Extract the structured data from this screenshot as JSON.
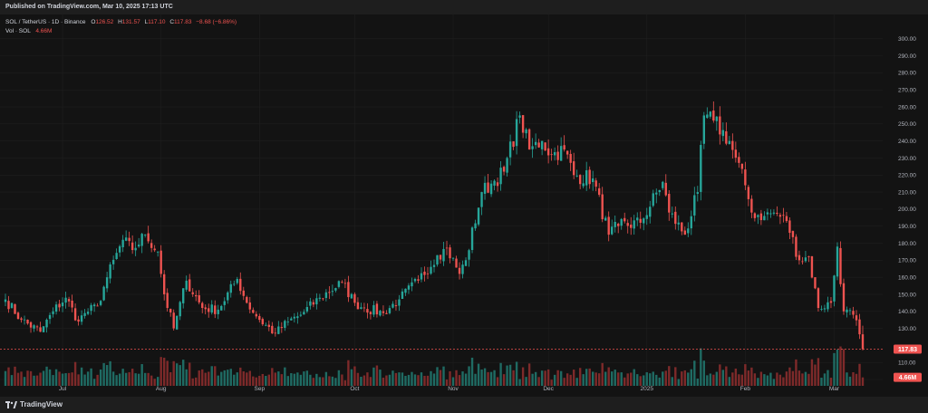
{
  "published": "Published on TradingView.com, Mar 10, 2025 17:13 UTC",
  "brand": "TradingView",
  "legend": {
    "symbol": "SOL / TetherUS · 1D · Binance",
    "o_label": "O",
    "o": "126.52",
    "h_label": "H",
    "h": "131.57",
    "l_label": "L",
    "l": "117.10",
    "c_label": "C",
    "c": "117.83",
    "change": "−8.68 (−6.86%)",
    "vol_label": "Vol · SOL",
    "vol": "4.66M"
  },
  "price_badge": "117.83",
  "vol_badge": "4.66M",
  "colors": {
    "up": "#26a69a",
    "down": "#ef5350",
    "up_vol": "#1f6b63",
    "down_vol": "#7e2a2a",
    "background": "#131313",
    "grid": "#1f1f1f",
    "axis_text": "#b2b5be"
  },
  "chart_data": {
    "type": "candlestick",
    "symbol": "SOL / TetherUS",
    "interval": "1D",
    "exchange": "Binance",
    "y_ticks": [
      "300.00",
      "290.00",
      "280.00",
      "270.00",
      "260.00",
      "250.00",
      "240.00",
      "230.00",
      "220.00",
      "210.00",
      "200.00",
      "190.00",
      "180.00",
      "170.00",
      "160.00",
      "150.00",
      "140.00",
      "130.00",
      "110.00",
      "100.00"
    ],
    "ylim": [
      100,
      310
    ],
    "x_ticks": [
      {
        "label": "Jul",
        "date": "2024-07-01"
      },
      {
        "label": "Aug",
        "date": "2024-08-01"
      },
      {
        "label": "Sep",
        "date": "2024-09-01"
      },
      {
        "label": "Oct",
        "date": "2024-10-01"
      },
      {
        "label": "Nov",
        "date": "2024-11-01"
      },
      {
        "label": "Dec",
        "date": "2024-12-01"
      },
      {
        "label": "2025",
        "date": "2025-01-01"
      },
      {
        "label": "Feb",
        "date": "2025-02-01"
      },
      {
        "label": "Mar",
        "date": "2025-03-01"
      }
    ],
    "start_date": "2024-06-13",
    "end_date": "2025-03-10",
    "close_anchors": [
      [
        "2024-06-13",
        147
      ],
      [
        "2024-06-18",
        135
      ],
      [
        "2024-06-24",
        128
      ],
      [
        "2024-06-28",
        140
      ],
      [
        "2024-07-02",
        148
      ],
      [
        "2024-07-06",
        134
      ],
      [
        "2024-07-08",
        139
      ],
      [
        "2024-07-12",
        143
      ],
      [
        "2024-07-15",
        160
      ],
      [
        "2024-07-20",
        182
      ],
      [
        "2024-07-23",
        176
      ],
      [
        "2024-07-27",
        185
      ],
      [
        "2024-07-31",
        175
      ],
      [
        "2024-08-02",
        150
      ],
      [
        "2024-08-05",
        130
      ],
      [
        "2024-08-09",
        158
      ],
      [
        "2024-08-14",
        142
      ],
      [
        "2024-08-19",
        141
      ],
      [
        "2024-08-25",
        159
      ],
      [
        "2024-08-28",
        145
      ],
      [
        "2024-09-01",
        135
      ],
      [
        "2024-09-06",
        127
      ],
      [
        "2024-09-10",
        134
      ],
      [
        "2024-09-14",
        138
      ],
      [
        "2024-09-20",
        148
      ],
      [
        "2024-09-27",
        157
      ],
      [
        "2024-10-01",
        145
      ],
      [
        "2024-10-04",
        142
      ],
      [
        "2024-10-10",
        139
      ],
      [
        "2024-10-15",
        147
      ],
      [
        "2024-10-21",
        158
      ],
      [
        "2024-10-27",
        173
      ],
      [
        "2024-10-30",
        177
      ],
      [
        "2024-11-03",
        162
      ],
      [
        "2024-11-05",
        170
      ],
      [
        "2024-11-10",
        210
      ],
      [
        "2024-11-13",
        215
      ],
      [
        "2024-11-17",
        222
      ],
      [
        "2024-11-22",
        255
      ],
      [
        "2024-11-25",
        235
      ],
      [
        "2024-11-29",
        240
      ],
      [
        "2024-12-02",
        232
      ],
      [
        "2024-12-06",
        235
      ],
      [
        "2024-12-09",
        220
      ],
      [
        "2024-12-15",
        218
      ],
      [
        "2024-12-20",
        185
      ],
      [
        "2024-12-23",
        190
      ],
      [
        "2024-12-30",
        192
      ],
      [
        "2025-01-06",
        216
      ],
      [
        "2025-01-08",
        198
      ],
      [
        "2025-01-13",
        185
      ],
      [
        "2025-01-17",
        210
      ],
      [
        "2025-01-19",
        255
      ],
      [
        "2025-01-22",
        252
      ],
      [
        "2025-01-27",
        240
      ],
      [
        "2025-02-01",
        214
      ],
      [
        "2025-02-03",
        198
      ],
      [
        "2025-02-07",
        196
      ],
      [
        "2025-02-10",
        198
      ],
      [
        "2025-02-14",
        193
      ],
      [
        "2025-02-18",
        170
      ],
      [
        "2025-02-21",
        172
      ],
      [
        "2025-02-24",
        142
      ],
      [
        "2025-02-28",
        145
      ],
      [
        "2025-03-02",
        178
      ],
      [
        "2025-03-04",
        140
      ],
      [
        "2025-03-07",
        138
      ],
      [
        "2025-03-09",
        126.52
      ],
      [
        "2025-03-10",
        117.83
      ]
    ],
    "volume_ylim": [
      0,
      20
    ],
    "volume_unit": "M SOL",
    "last": {
      "open": 126.52,
      "high": 131.57,
      "low": 117.1,
      "close": 117.83,
      "change": -8.68,
      "change_pct": -6.86,
      "volume": 4.66
    }
  }
}
